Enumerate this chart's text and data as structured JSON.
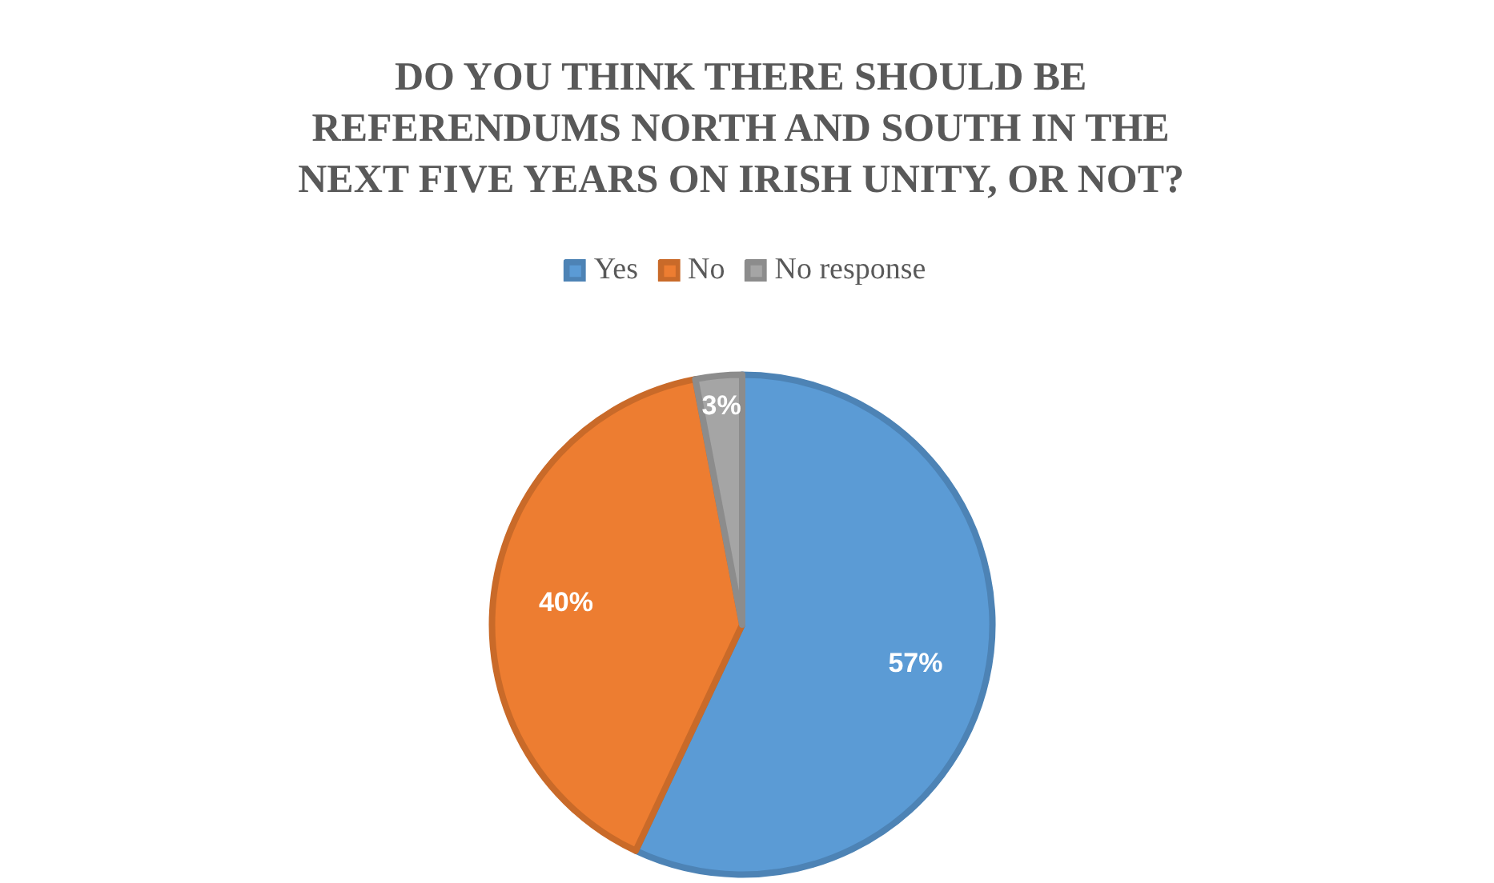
{
  "chart_data": {
    "type": "pie",
    "title": "DO YOU THINK THERE SHOULD BE\nREFERENDUMS NORTH AND SOUTH IN THE\nNEXT FIVE YEARS ON IRISH UNITY, OR NOT?",
    "categories": [
      "Yes",
      "No",
      "No response"
    ],
    "values": [
      57,
      40,
      3
    ],
    "colors": [
      "#5b9bd5",
      "#ed7d31",
      "#a5a5a5"
    ],
    "value_labels": [
      "57%",
      "40%",
      "3%"
    ],
    "legend": "top"
  }
}
